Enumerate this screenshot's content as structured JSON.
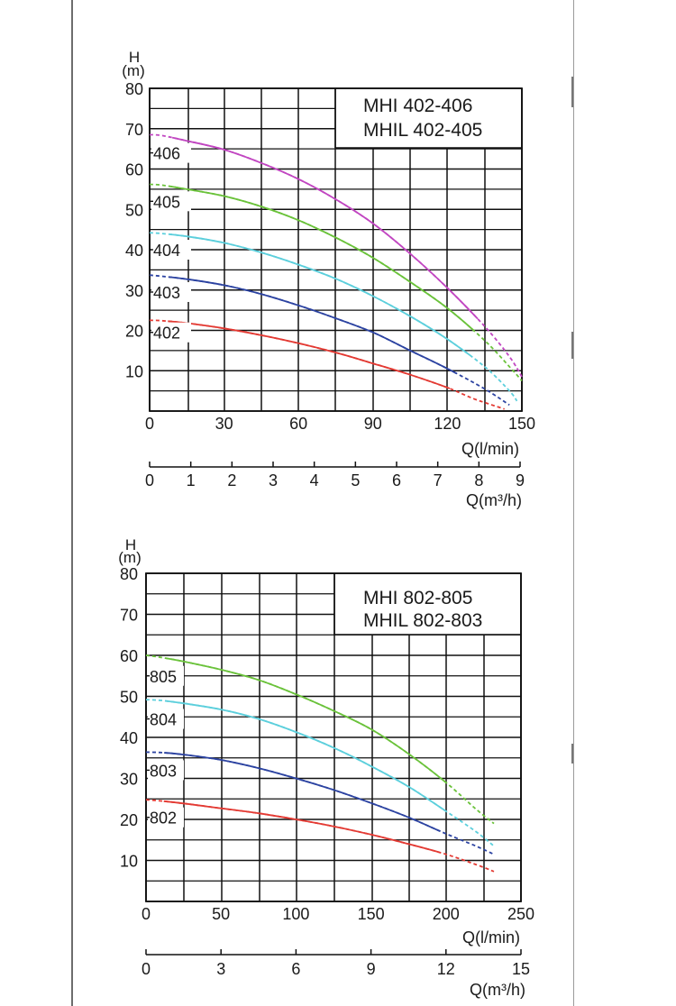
{
  "chart_data": [
    {
      "type": "line",
      "y_axis_symbol": "H",
      "y_axis_unit": "(m)",
      "ylim": [
        0,
        80
      ],
      "y_ticks": [
        10,
        20,
        30,
        40,
        50,
        60,
        70,
        80
      ],
      "y_tick_labels": [
        "10",
        "20",
        "30",
        "40",
        "50",
        "60",
        "70",
        "80"
      ],
      "x_lpm_max": 150,
      "x_lpm_ticks": [
        0,
        30,
        60,
        90,
        120,
        150
      ],
      "x_lpm_labels": [
        "0",
        "30",
        "60",
        "90",
        "120",
        "150"
      ],
      "xlabel_lpm": "Q(l/min)",
      "x_m3h_max": 9,
      "x_m3h_ticks": [
        0,
        1,
        2,
        3,
        4,
        5,
        6,
        7,
        8,
        9
      ],
      "x_m3h_labels": [
        "0",
        "1",
        "2",
        "3",
        "4",
        "5",
        "6",
        "7",
        "8",
        "9"
      ],
      "xlabel_m3h": "Q(m³/h)",
      "grid": true,
      "legend_lines": [
        "MHI   402-406",
        "MHIL 402-405"
      ],
      "series": [
        {
          "name": "406",
          "label_y": 64,
          "color": "#c146c1",
          "x": [
            0,
            5,
            15,
            30,
            45,
            60,
            75,
            90,
            105,
            120,
            135,
            145,
            150
          ],
          "y": [
            68.5,
            68.3,
            67,
            64.8,
            61.5,
            57.5,
            52.5,
            46.5,
            39,
            30.5,
            21,
            13.5,
            8.5
          ]
        },
        {
          "name": "405",
          "label_y": 52,
          "color": "#6ac23a",
          "x": [
            0,
            5,
            15,
            30,
            45,
            60,
            75,
            90,
            105,
            120,
            135,
            145,
            150
          ],
          "y": [
            56.2,
            56,
            55,
            53.3,
            50.7,
            47.3,
            43,
            38,
            32,
            25.5,
            17.5,
            11,
            7.5
          ]
        },
        {
          "name": "404",
          "label_y": 40,
          "color": "#5ccfdc",
          "x": [
            0,
            5,
            15,
            30,
            45,
            60,
            75,
            90,
            105,
            120,
            135,
            145,
            148
          ],
          "y": [
            44.2,
            44,
            43.3,
            41.7,
            39.3,
            36.3,
            32.8,
            28.5,
            23.5,
            17.8,
            11,
            5,
            2.5
          ]
        },
        {
          "name": "403",
          "label_y": 29.5,
          "color": "#2c43a1",
          "x": [
            0,
            5,
            15,
            30,
            45,
            60,
            75,
            90,
            105,
            120,
            135,
            145
          ],
          "y": [
            33.7,
            33.4,
            32.7,
            31.2,
            29,
            26.2,
            23,
            19.5,
            15,
            10.5,
            5.5,
            1.5
          ]
        },
        {
          "name": "402",
          "label_y": 19.5,
          "color": "#e33a33",
          "x": [
            0,
            5,
            15,
            30,
            45,
            60,
            75,
            90,
            105,
            120,
            130,
            138,
            143
          ],
          "y": [
            22.5,
            22.4,
            21.8,
            20.5,
            18.8,
            16.8,
            14.5,
            11.8,
            9,
            5.8,
            3.2,
            1.5,
            0.5
          ]
        }
      ]
    },
    {
      "type": "line",
      "y_axis_symbol": "H",
      "y_axis_unit": "(m)",
      "ylim": [
        0,
        80
      ],
      "y_ticks": [
        10,
        20,
        30,
        40,
        50,
        60,
        70,
        80
      ],
      "y_tick_labels": [
        "10",
        "20",
        "30",
        "40",
        "50",
        "60",
        "70",
        "80"
      ],
      "x_lpm_max": 250,
      "x_lpm_ticks": [
        0,
        50,
        100,
        150,
        200,
        250
      ],
      "x_lpm_labels": [
        "0",
        "50",
        "100",
        "150",
        "200",
        "250"
      ],
      "xlabel_lpm": "Q(l/min)",
      "x_m3h_max": 15,
      "x_m3h_ticks": [
        0,
        3,
        6,
        9,
        12,
        15
      ],
      "x_m3h_labels": [
        "0",
        "3",
        "6",
        "9",
        "12",
        "15"
      ],
      "xlabel_m3h": "Q(m³/h)",
      "grid": true,
      "legend_lines": [
        "MHI   802-805",
        "MHIL 802-803"
      ],
      "series": [
        {
          "name": "805",
          "label_y": 55,
          "color": "#6ac23a",
          "x": [
            0,
            10,
            25,
            50,
            75,
            100,
            125,
            150,
            175,
            200,
            220,
            232
          ],
          "y": [
            60,
            59.5,
            58.5,
            56.5,
            54,
            50.5,
            46.5,
            42,
            36,
            29,
            22.5,
            19
          ]
        },
        {
          "name": "804",
          "label_y": 44.5,
          "color": "#5ccfdc",
          "x": [
            0,
            10,
            25,
            50,
            75,
            100,
            125,
            150,
            175,
            200,
            220,
            232
          ],
          "y": [
            49.2,
            49,
            48.3,
            46.8,
            44.5,
            41.3,
            37.5,
            33,
            28,
            22,
            17,
            13.5
          ]
        },
        {
          "name": "803",
          "label_y": 32,
          "color": "#2c43a1",
          "x": [
            0,
            10,
            25,
            50,
            75,
            100,
            125,
            150,
            175,
            200,
            220,
            232
          ],
          "y": [
            36.4,
            36.3,
            35.8,
            34.5,
            32.5,
            30,
            27.2,
            24,
            20.5,
            16.5,
            13.5,
            11.5
          ]
        },
        {
          "name": "802",
          "label_y": 20.5,
          "color": "#e33a33",
          "x": [
            0,
            10,
            25,
            50,
            75,
            100,
            125,
            150,
            175,
            200,
            220,
            232
          ],
          "y": [
            24.8,
            24.5,
            23.9,
            22.7,
            21.5,
            20,
            18.3,
            16.3,
            14,
            11.5,
            9,
            7.3
          ]
        }
      ]
    }
  ]
}
